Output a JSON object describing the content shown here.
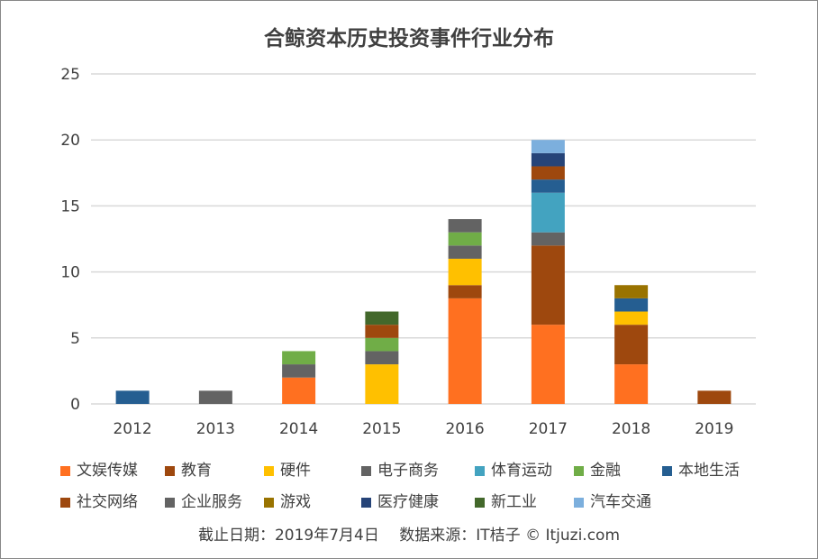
{
  "chart_data": {
    "type": "bar",
    "stacked": true,
    "title": "合鲸资本历史投资事件行业分布",
    "categories": [
      "2012",
      "2013",
      "2014",
      "2015",
      "2016",
      "2017",
      "2018",
      "2019"
    ],
    "ylim": [
      0,
      25
    ],
    "yticks": [
      0,
      5,
      10,
      15,
      20,
      25
    ],
    "grid": true,
    "legend_position": "bottom",
    "series": [
      {
        "name": "文娱传媒",
        "color": "#FF7020",
        "values": [
          0,
          0,
          2,
          0,
          8,
          6,
          3,
          0
        ]
      },
      {
        "name": "教育",
        "color": "#9E480E",
        "values": [
          0,
          0,
          0,
          0,
          1,
          6,
          3,
          0
        ]
      },
      {
        "name": "硬件",
        "color": "#FFC000",
        "values": [
          0,
          0,
          0,
          3,
          2,
          0,
          1,
          0
        ]
      },
      {
        "name": "电子商务",
        "color": "#636363",
        "values": [
          0,
          0,
          1,
          1,
          1,
          1,
          0,
          0
        ]
      },
      {
        "name": "体育运动",
        "color": "#43A3C0",
        "values": [
          0,
          0,
          0,
          0,
          0,
          3,
          0,
          0
        ]
      },
      {
        "name": "金融",
        "color": "#70AD47",
        "values": [
          0,
          0,
          1,
          1,
          1,
          0,
          0,
          0
        ]
      },
      {
        "name": "本地生活",
        "color": "#255E91",
        "values": [
          1,
          0,
          0,
          0,
          0,
          1,
          1,
          0
        ]
      },
      {
        "name": "社交网络",
        "color": "#9E480E",
        "values": [
          0,
          0,
          0,
          1,
          0,
          1,
          0,
          1
        ]
      },
      {
        "name": "企业服务",
        "color": "#636363",
        "values": [
          0,
          1,
          0,
          0,
          1,
          0,
          0,
          0
        ]
      },
      {
        "name": "游戏",
        "color": "#997300",
        "values": [
          0,
          0,
          0,
          0,
          0,
          0,
          1,
          0
        ]
      },
      {
        "name": "医疗健康",
        "color": "#264478",
        "values": [
          0,
          0,
          0,
          0,
          0,
          1,
          0,
          0
        ]
      },
      {
        "name": "新工业",
        "color": "#43682B",
        "values": [
          0,
          0,
          0,
          1,
          0,
          0,
          0,
          0
        ]
      },
      {
        "name": "汽车交通",
        "color": "#7CAFDD",
        "values": [
          0,
          0,
          0,
          0,
          0,
          1,
          0,
          0
        ]
      }
    ]
  },
  "footer": "截止日期：2019年7月4日　 数据来源：IT桔子 © Itjuzi.com"
}
